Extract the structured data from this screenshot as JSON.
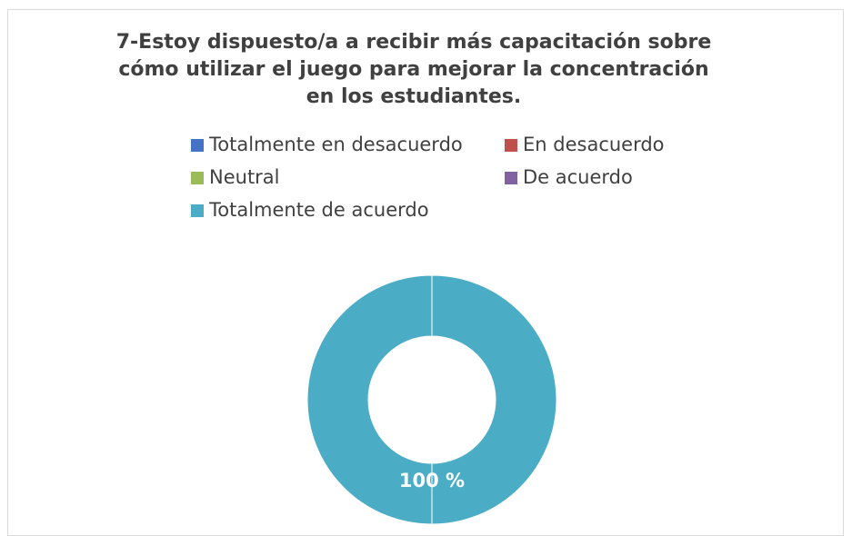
{
  "chart_data": {
    "type": "donut",
    "title": "7-Estoy dispuesto/a a recibir más capacitación sobre cómo utilizar el juego para mejorar la concentración en los estudiantes.",
    "categories": [
      "Totalmente en desacuerdo",
      "En desacuerdo",
      "Neutral",
      "De acuerdo",
      "Totalmente de acuerdo"
    ],
    "values": [
      0,
      0,
      0,
      0,
      100
    ],
    "value_labels": [
      null,
      null,
      null,
      null,
      "100 %"
    ],
    "colors": [
      "#4472c4",
      "#c0504d",
      "#9bbb59",
      "#8064a2",
      "#4bacc6"
    ],
    "legend": "top"
  }
}
